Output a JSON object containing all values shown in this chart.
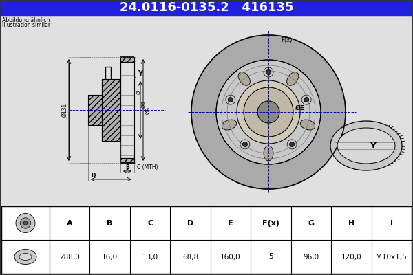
{
  "title_text": "24.0116-0135.2   416135",
  "title_bg": "#2020dd",
  "title_fg": "#ffffff",
  "subtitle1": "Abbildung ähnlich",
  "subtitle2": "Illustration similar",
  "table_headers": [
    "A",
    "B",
    "C",
    "D",
    "E",
    "F(x)",
    "G",
    "H",
    "I"
  ],
  "table_values": [
    "288,0",
    "16,0",
    "13,0",
    "68,8",
    "160,0",
    "5",
    "96,0",
    "120,0",
    "M10x1,5"
  ],
  "bg_color": "#d8d8d8",
  "draw_bg": "#e8e8e8",
  "line_color": "#000000",
  "table_bg": "#ffffff",
  "blue_line": "#0000aa",
  "hatch_color": "#888888"
}
